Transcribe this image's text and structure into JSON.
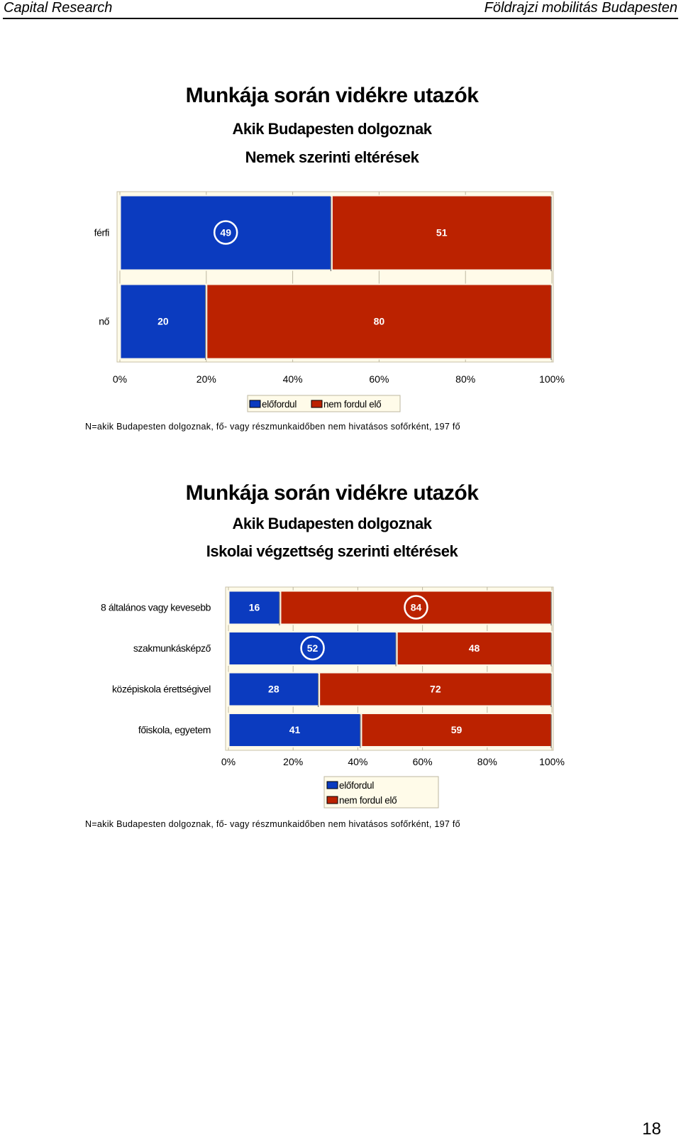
{
  "header": {
    "left": "Capital Research",
    "right": "Földrajzi mobilitás Budapesten"
  },
  "page_number": "18",
  "charts": [
    {
      "title": "Munkája során vidékre utazók",
      "subtitle1": "Akik Budapesten dolgoznak",
      "subtitle2": "Nemek szerinti eltérések",
      "note": "N=akik Budapesten dolgoznak, fő- vagy részmunkaidőben nem hivatásos sofőrként, 197 fő",
      "legend": [
        "előfordul",
        "nem fordul elő"
      ]
    },
    {
      "title": "Munkája során vidékre utazók",
      "subtitle1": "Akik Budapesten dolgoznak",
      "subtitle2": "Iskolai végzettség szerinti eltérések",
      "note": "N=akik Budapesten dolgoznak, fő- vagy részmunkaidőben nem hivatásos sofőrként, 197 fő",
      "legend": [
        "előfordul",
        "nem fordul elő"
      ]
    }
  ],
  "chart_data": [
    {
      "type": "bar",
      "orientation": "horizontal",
      "stacked": "percent",
      "categories": [
        "férfi",
        "nő"
      ],
      "series": [
        {
          "name": "előfordul",
          "values": [
            49,
            20
          ],
          "color": "#0b3bbf"
        },
        {
          "name": "nem fordul elő",
          "values": [
            51,
            80
          ],
          "color": "#bb2200"
        }
      ],
      "xticks": [
        "0%",
        "20%",
        "40%",
        "60%",
        "80%",
        "100%"
      ],
      "xlim": [
        0,
        100
      ],
      "highlight": [
        {
          "series": 0,
          "category": 0
        }
      ],
      "legend_position": "bottom"
    },
    {
      "type": "bar",
      "orientation": "horizontal",
      "stacked": "percent",
      "categories": [
        "8 általános vagy kevesebb",
        "szakmunkásképző",
        "középiskola érettségivel",
        "főiskola, egyetem"
      ],
      "series": [
        {
          "name": "előfordul",
          "values": [
            16,
            52,
            28,
            41
          ],
          "color": "#0b3bbf"
        },
        {
          "name": "nem fordul elő",
          "values": [
            84,
            48,
            72,
            59
          ],
          "color": "#bb2200"
        }
      ],
      "xticks": [
        "0%",
        "20%",
        "40%",
        "60%",
        "80%",
        "100%"
      ],
      "xlim": [
        0,
        100
      ],
      "highlight": [
        {
          "series": 1,
          "category": 0
        },
        {
          "series": 0,
          "category": 1
        }
      ],
      "legend_position": "bottom"
    }
  ]
}
